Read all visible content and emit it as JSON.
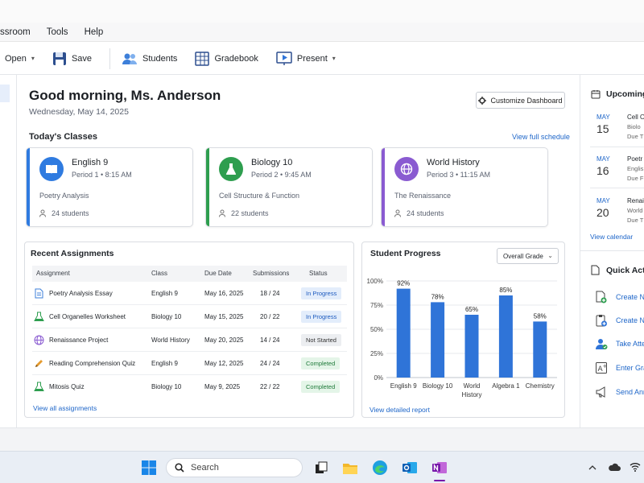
{
  "menu": [
    "ssroom",
    "Tools",
    "Help"
  ],
  "toolbar": {
    "open_label": "Open",
    "save_label": "Save",
    "students_label": "Students",
    "gradebook_label": "Gradebook",
    "present_label": "Present"
  },
  "header": {
    "greeting": "Good morning, Ms. Anderson",
    "date": "Wednesday, May 14, 2025",
    "customize_label": "Customize Dashboard"
  },
  "classes": {
    "title": "Today's Classes",
    "view_all": "View full schedule",
    "items": [
      {
        "name": "English 9",
        "period": "Period 1 • 8:15 AM",
        "topic": "Poetry Analysis",
        "students": "24 students",
        "color": "#2f7be0",
        "icon": "book-icon"
      },
      {
        "name": "Biology 10",
        "period": "Period 2 • 9:45 AM",
        "topic": "Cell Structure & Function",
        "students": "22 students",
        "color": "#2e9e4f",
        "icon": "flask-icon"
      },
      {
        "name": "World History",
        "period": "Period 3 • 11:15 AM",
        "topic": "The Renaissance",
        "students": "24 students",
        "color": "#8a5bd1",
        "icon": "globe-icon"
      }
    ]
  },
  "assignments": {
    "title": "Recent Assignments",
    "columns": [
      "Assignment",
      "Class",
      "Due Date",
      "Submissions",
      "Status"
    ],
    "rows": [
      {
        "name": "Poetry Analysis Essay",
        "class": "English 9",
        "due": "May 16, 2025",
        "subs": "18 / 24",
        "status": "In Progress",
        "icon": "document-icon"
      },
      {
        "name": "Cell Organelles Worksheet",
        "class": "Biology 10",
        "due": "May 15, 2025",
        "subs": "20 / 22",
        "status": "In Progress",
        "icon": "flask-icon"
      },
      {
        "name": "Renaissance Project",
        "class": "World History",
        "due": "May 20, 2025",
        "subs": "14 / 24",
        "status": "Not Started",
        "icon": "globe-icon"
      },
      {
        "name": "Reading Comprehension Quiz",
        "class": "English 9",
        "due": "May 12, 2025",
        "subs": "24 / 24",
        "status": "Completed",
        "icon": "pencil-icon"
      },
      {
        "name": "Mitosis Quiz",
        "class": "Biology 10",
        "due": "May 9, 2025",
        "subs": "22 / 22",
        "status": "Completed",
        "icon": "flask-icon"
      }
    ],
    "view_all": "View all assignments"
  },
  "progress": {
    "title": "Student Progress",
    "select_value": "Overall Grade",
    "view_report": "View detailed report"
  },
  "chart_data": {
    "type": "bar",
    "categories": [
      "English 9",
      "Biology 10",
      "World History",
      "Algebra 1",
      "Chemistry"
    ],
    "values": [
      92,
      78,
      65,
      85,
      58
    ],
    "value_labels": [
      "92%",
      "78%",
      "65%",
      "85%",
      "58%"
    ],
    "yticks": [
      "0%",
      "25%",
      "50%",
      "75%",
      "100%"
    ],
    "ylim": [
      0,
      100
    ],
    "bar_color": "#2f74d8",
    "grid": true
  },
  "upcoming": {
    "title": "Upcoming",
    "items": [
      {
        "month": "MAY",
        "day": "15",
        "title": "Cell O",
        "sub": "Biolo",
        "sub2": "Due T"
      },
      {
        "month": "MAY",
        "day": "16",
        "title": "Poetr",
        "sub": "Englis",
        "sub2": "Due F"
      },
      {
        "month": "MAY",
        "day": "20",
        "title": "Renai",
        "sub": "World",
        "sub2": "Due T"
      }
    ],
    "view_calendar": "View calendar"
  },
  "quick_actions": {
    "title": "Quick Acti",
    "items": [
      {
        "label": "Create N",
        "icon": "new-document-icon"
      },
      {
        "label": "Create N",
        "icon": "clipboard-icon"
      },
      {
        "label": "Take Atte",
        "icon": "attendance-icon"
      },
      {
        "label": "Enter Gra",
        "icon": "grade-icon"
      },
      {
        "label": "Send Ann",
        "icon": "megaphone-icon"
      }
    ]
  },
  "taskbar": {
    "search_placeholder": "Search"
  }
}
